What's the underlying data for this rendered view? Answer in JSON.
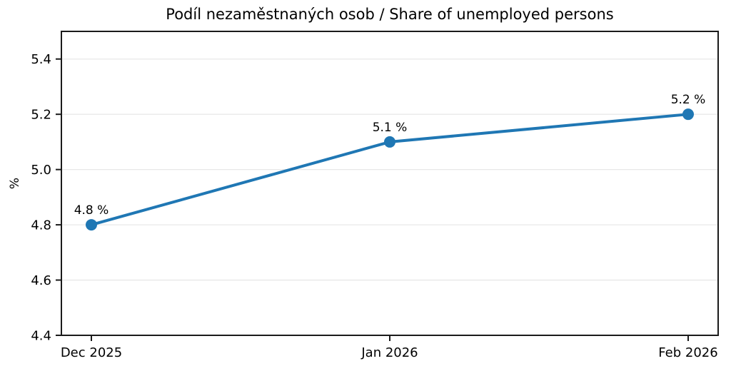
{
  "chart_data": {
    "type": "line",
    "title": "Podíl nezaměstnaných osob / Share of unemployed persons",
    "ylabel": "%",
    "xlabel": "",
    "categories": [
      "Dec 2025",
      "Jan 2026",
      "Feb 2026"
    ],
    "series": [
      {
        "name": "Share of unemployed persons",
        "values": [
          4.8,
          5.1,
          5.2
        ]
      }
    ],
    "point_labels": [
      "4.8 %",
      "5.1 %",
      "5.2 %"
    ],
    "ylim": [
      4.4,
      5.5
    ],
    "yticks": [
      4.4,
      4.6,
      4.8,
      5.0,
      5.2,
      5.4
    ],
    "ytick_decimals": 1,
    "grid": "horizontal",
    "legend": "none",
    "colors": {
      "line": "#1f77b4",
      "marker": "#1f77b4",
      "grid": "#e8e8e8",
      "spine": "#1a1a1a",
      "text": "#000000",
      "background": "#ffffff"
    }
  }
}
